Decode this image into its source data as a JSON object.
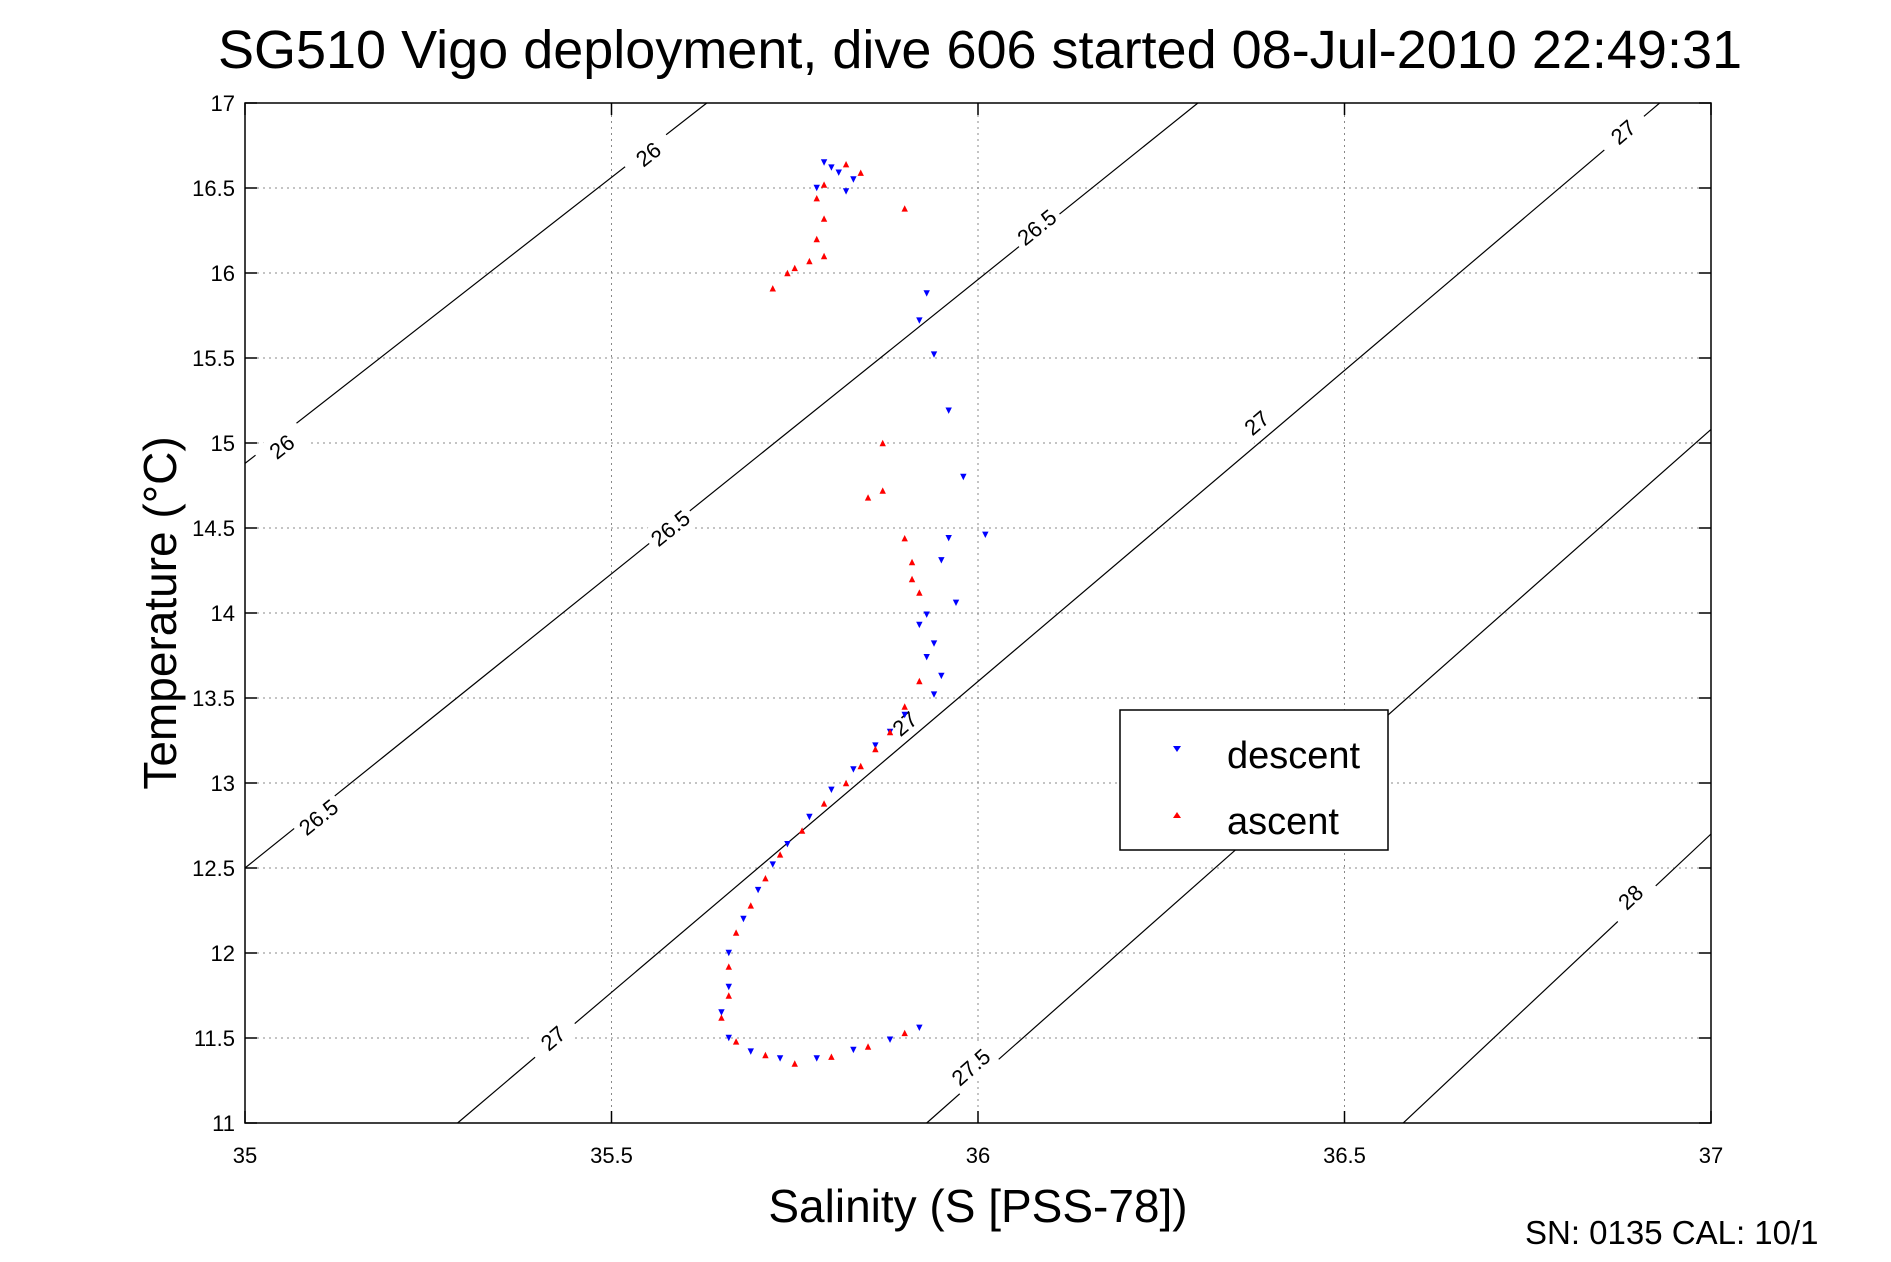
{
  "chart_data": {
    "type": "scatter",
    "title": "SG510 Vigo deployment, dive 606 started 08-Jul-2010 22:49:31",
    "xlabel": "Salinity (S [PSS-78])",
    "ylabel": "Temperature (°C)",
    "xlim": [
      35,
      37
    ],
    "ylim": [
      11,
      17
    ],
    "xticks": [
      "35",
      "35.5",
      "36",
      "36.5",
      "37"
    ],
    "yticks": [
      "11",
      "11.5",
      "12",
      "12.5",
      "13",
      "13.5",
      "14",
      "14.5",
      "15",
      "15.5",
      "16",
      "16.5",
      "17"
    ],
    "grid": true,
    "legend_position": "right-middle",
    "footer": "SN: 0135  CAL: 10/1",
    "isopycnals": [
      {
        "label": "26",
        "p1": [
          35.0,
          14.88
        ],
        "p2": [
          35.63,
          17.0
        ],
        "label_positions": [
          [
            35.05,
            14.98
          ],
          [
            35.55,
            16.7
          ]
        ]
      },
      {
        "label": "26.5",
        "p1": [
          35.0,
          12.5
        ],
        "p2": [
          36.3,
          17.0
        ],
        "label_positions": [
          [
            35.1,
            12.8
          ],
          [
            35.58,
            14.5
          ],
          [
            36.08,
            16.27
          ]
        ]
      },
      {
        "label": "27",
        "p1": [
          35.29,
          11.0
        ],
        "p2": [
          36.93,
          17.0
        ],
        "label_positions": [
          [
            35.42,
            11.5
          ],
          [
            35.9,
            13.35
          ],
          [
            36.38,
            15.12
          ],
          [
            36.88,
            16.83
          ]
        ]
      },
      {
        "label": "27.5",
        "p1": [
          35.93,
          11.0
        ],
        "p2": [
          37.0,
          15.08
        ],
        "label_positions": [
          [
            35.99,
            11.33
          ]
        ]
      },
      {
        "label": "28",
        "p1": [
          36.58,
          11.0
        ],
        "p2": [
          37.0,
          12.7
        ],
        "label_positions": [
          [
            36.89,
            12.33
          ]
        ]
      }
    ],
    "series": [
      {
        "name": "descent",
        "color": "#0000ff",
        "marker": "triangle-down",
        "points": [
          [
            35.79,
            16.65
          ],
          [
            35.8,
            16.62
          ],
          [
            35.81,
            16.59
          ],
          [
            35.83,
            16.55
          ],
          [
            35.82,
            16.48
          ],
          [
            35.78,
            16.5
          ],
          [
            35.93,
            15.88
          ],
          [
            35.92,
            15.72
          ],
          [
            35.94,
            15.52
          ],
          [
            35.96,
            15.19
          ],
          [
            35.98,
            14.8
          ],
          [
            36.01,
            14.46
          ],
          [
            35.96,
            14.44
          ],
          [
            35.95,
            14.31
          ],
          [
            35.97,
            14.06
          ],
          [
            35.93,
            13.99
          ],
          [
            35.92,
            13.93
          ],
          [
            35.94,
            13.82
          ],
          [
            35.93,
            13.74
          ],
          [
            35.95,
            13.63
          ],
          [
            35.94,
            13.52
          ],
          [
            35.9,
            13.4
          ],
          [
            35.88,
            13.3
          ],
          [
            35.86,
            13.22
          ],
          [
            35.83,
            13.08
          ],
          [
            35.8,
            12.96
          ],
          [
            35.77,
            12.8
          ],
          [
            35.74,
            12.64
          ],
          [
            35.72,
            12.52
          ],
          [
            35.7,
            12.37
          ],
          [
            35.68,
            12.2
          ],
          [
            35.66,
            12.0
          ],
          [
            35.66,
            11.8
          ],
          [
            35.65,
            11.65
          ],
          [
            35.66,
            11.5
          ],
          [
            35.69,
            11.42
          ],
          [
            35.73,
            11.38
          ],
          [
            35.78,
            11.38
          ],
          [
            35.83,
            11.43
          ],
          [
            35.88,
            11.49
          ],
          [
            35.92,
            11.56
          ]
        ]
      },
      {
        "name": "ascent",
        "color": "#ff0000",
        "marker": "triangle-up",
        "points": [
          [
            35.82,
            16.64
          ],
          [
            35.84,
            16.59
          ],
          [
            35.79,
            16.52
          ],
          [
            35.78,
            16.44
          ],
          [
            35.79,
            16.32
          ],
          [
            35.78,
            16.2
          ],
          [
            35.79,
            16.1
          ],
          [
            35.77,
            16.07
          ],
          [
            35.75,
            16.03
          ],
          [
            35.74,
            16.0
          ],
          [
            35.72,
            15.91
          ],
          [
            35.9,
            16.38
          ],
          [
            35.87,
            15.0
          ],
          [
            35.85,
            14.68
          ],
          [
            35.87,
            14.72
          ],
          [
            35.9,
            14.44
          ],
          [
            35.91,
            14.3
          ],
          [
            35.92,
            14.12
          ],
          [
            35.91,
            14.2
          ],
          [
            35.92,
            13.6
          ],
          [
            35.9,
            13.45
          ],
          [
            35.88,
            13.3
          ],
          [
            35.86,
            13.2
          ],
          [
            35.84,
            13.1
          ],
          [
            35.82,
            13.0
          ],
          [
            35.79,
            12.88
          ],
          [
            35.76,
            12.72
          ],
          [
            35.73,
            12.58
          ],
          [
            35.71,
            12.44
          ],
          [
            35.69,
            12.28
          ],
          [
            35.67,
            12.12
          ],
          [
            35.66,
            11.92
          ],
          [
            35.66,
            11.75
          ],
          [
            35.65,
            11.62
          ],
          [
            35.67,
            11.48
          ],
          [
            35.71,
            11.4
          ],
          [
            35.75,
            11.35
          ],
          [
            35.8,
            11.39
          ],
          [
            35.85,
            11.45
          ],
          [
            35.9,
            11.53
          ]
        ]
      }
    ]
  }
}
